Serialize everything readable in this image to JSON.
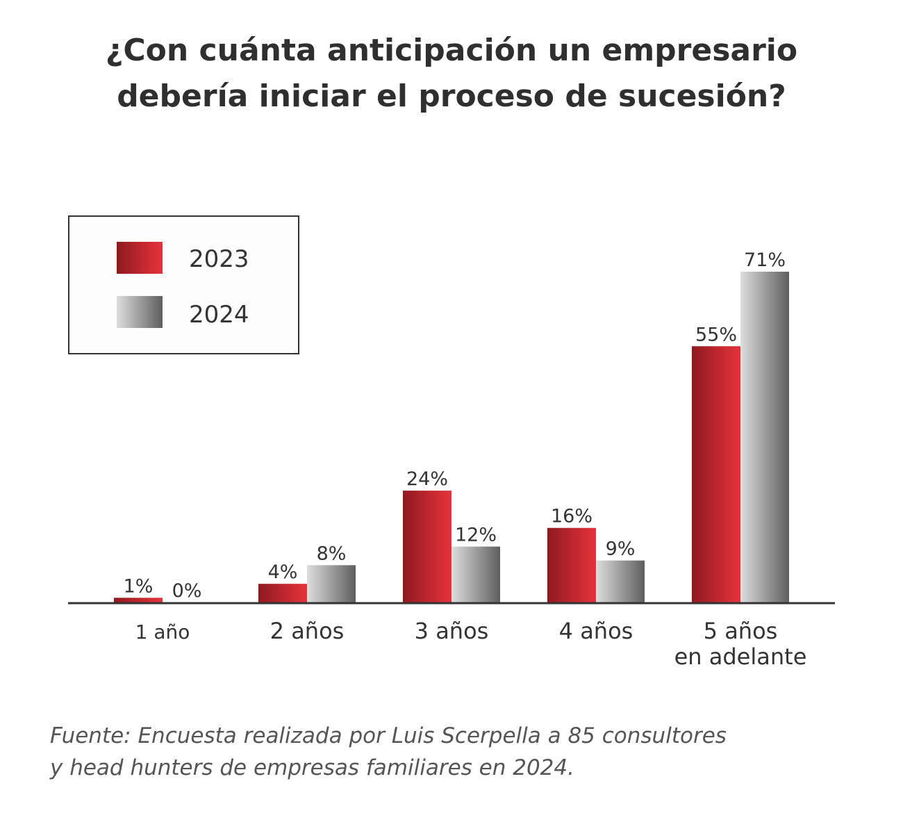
{
  "title": {
    "line1": "¿Con cuánta anticipación un empresario",
    "line2": "debería iniciar el proceso de sucesión?"
  },
  "chart_data": {
    "type": "bar",
    "title": "¿Con cuánta anticipación un empresario debería iniciar el proceso de sucesión?",
    "categories": [
      [
        "1 año"
      ],
      [
        "2 años"
      ],
      [
        "3 años"
      ],
      [
        "4 años"
      ],
      [
        "5 años",
        "en adelante"
      ]
    ],
    "series": [
      {
        "name": "2023",
        "values": [
          1,
          4,
          24,
          16,
          55
        ],
        "labels": [
          "1%",
          "4%",
          "24%",
          "16%",
          "55%"
        ],
        "color_dark": "#8e1a20",
        "color_light": "#e8323a"
      },
      {
        "name": "2024",
        "values": [
          0,
          8,
          12,
          9,
          71
        ],
        "labels": [
          "0%",
          "8%",
          "12%",
          "9%",
          "71%"
        ],
        "color_dark": "#5e5e60",
        "color_light": "#dedede"
      }
    ],
    "ylim": [
      0,
      71
    ],
    "xlabel": "",
    "ylabel": "",
    "grid": false,
    "legend": "top-left"
  },
  "source": {
    "line1": "Fuente: Encuesta realizada por Luis Scerpella a 85 consultores",
    "line2": "y head hunters de empresas familiares en 2024."
  }
}
